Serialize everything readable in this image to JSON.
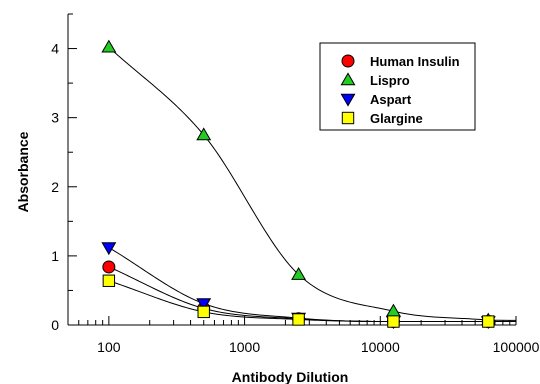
{
  "chart_data": {
    "type": "line",
    "xlabel": "Antibody Dilution",
    "ylabel": "Absorbance",
    "x_scale": "log",
    "xlim": [
      50,
      100000
    ],
    "ylim": [
      0,
      4.5
    ],
    "x_ticks": [
      100,
      1000,
      10000,
      100000
    ],
    "x_tick_labels": [
      "100",
      "1000",
      "10000",
      "100000"
    ],
    "y_ticks": [
      0,
      1,
      2,
      3,
      4
    ],
    "y_tick_labels": [
      "0",
      "1",
      "2",
      "3",
      "4"
    ],
    "grid": false,
    "legend_position": "top-right",
    "x": [
      100,
      500,
      2500,
      12500,
      62500
    ],
    "series": [
      {
        "name": "Human Insulin",
        "marker": "circle",
        "color": "#ff0000",
        "values": [
          0.84,
          0.24,
          0.09,
          0.05,
          0.05
        ]
      },
      {
        "name": "Lispro",
        "marker": "triangle-up",
        "color": "#22cc22",
        "values": [
          4.02,
          2.75,
          0.73,
          0.2,
          0.07
        ]
      },
      {
        "name": "Aspart",
        "marker": "triangle-down",
        "color": "#0000ff",
        "values": [
          1.12,
          0.31,
          0.1,
          0.05,
          0.05
        ]
      },
      {
        "name": "Glargine",
        "marker": "square",
        "color": "#ffff00",
        "values": [
          0.64,
          0.19,
          0.08,
          0.05,
          0.05
        ]
      }
    ]
  }
}
